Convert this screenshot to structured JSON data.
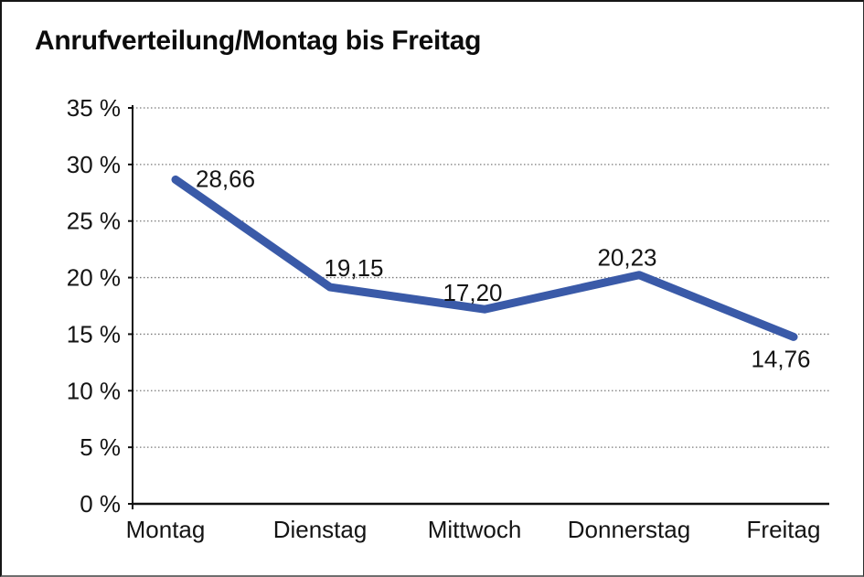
{
  "chart_data": {
    "type": "line",
    "title": "Anrufverteilung/Montag bis Freitag",
    "categories": [
      "Montag",
      "Dienstag",
      "Mittwoch",
      "Donnerstag",
      "Freitag"
    ],
    "series": [
      {
        "name": "Anrufverteilung",
        "values": [
          28.66,
          19.15,
          17.2,
          20.23,
          14.76
        ],
        "value_labels": [
          "28,66",
          "19,15",
          "17,20",
          "20,23",
          "14,76"
        ]
      }
    ],
    "xlabel": "",
    "ylabel": "",
    "ylim": [
      0,
      35
    ],
    "y_tick_step": 5,
    "y_tick_labels": [
      "0 %",
      "5 %",
      "10 %",
      "15 %",
      "20 %",
      "25 %",
      "30 %",
      "35 %"
    ],
    "y_tick_values": [
      0,
      5,
      10,
      15,
      20,
      25,
      30,
      35
    ],
    "grid": "horizontal-dotted",
    "legend": "none",
    "colors": {
      "line": "#3a5aa8",
      "axis": "#111111",
      "gridline": "#7a7a7a",
      "text": "#141414",
      "background": "#ffffff"
    }
  }
}
